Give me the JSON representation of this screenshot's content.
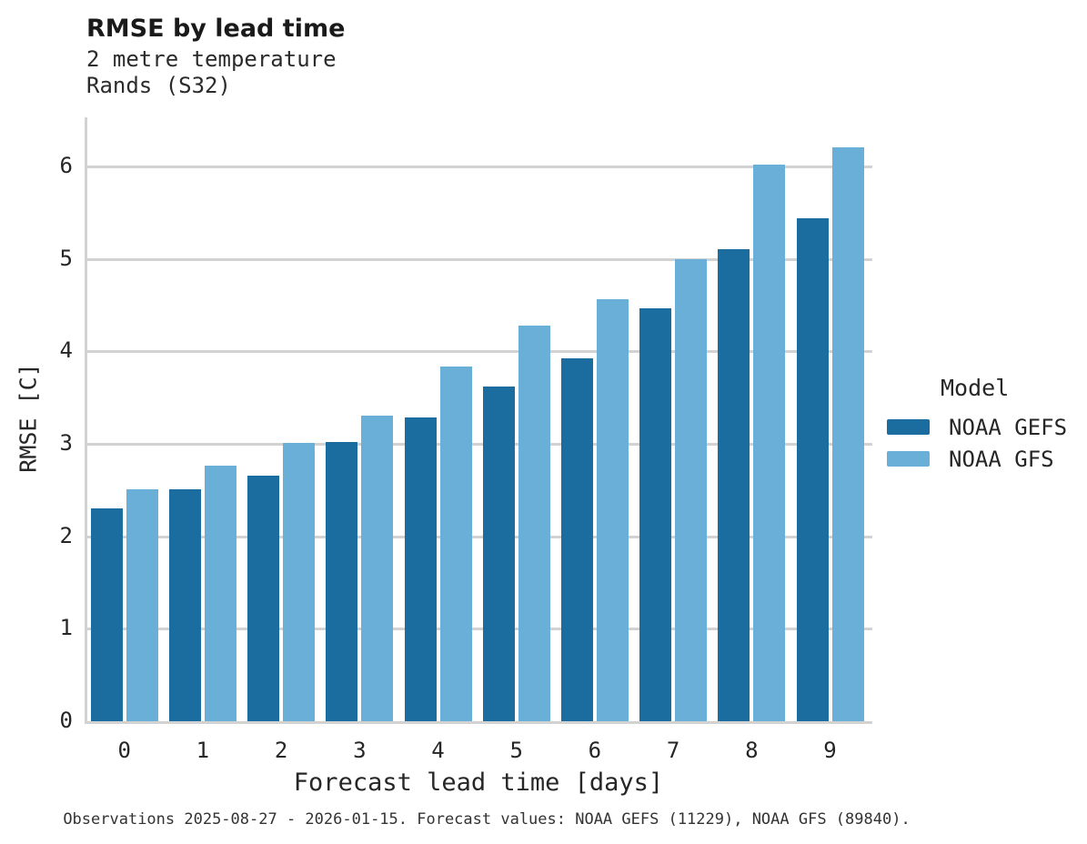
{
  "header": {
    "title": "RMSE by lead time",
    "subtitle_line1": "2 metre temperature",
    "subtitle_line2": "Rands (S32)"
  },
  "legend": {
    "title": "Model",
    "entries": [
      {
        "label": "NOAA GEFS",
        "color": "#1a6d9e"
      },
      {
        "label": "NOAA GFS",
        "color": "#69afd8"
      }
    ]
  },
  "footer": {
    "caption": "Observations 2025-08-27 - 2026-01-15. Forecast values: NOAA GEFS (11229), NOAA GFS (89840)."
  },
  "colors": {
    "series_dark": "#1a6d9e",
    "series_light": "#69afd8",
    "gridline": "#d2d2d2",
    "text": "#262626"
  },
  "chart_data": {
    "type": "bar",
    "title": "RMSE by lead time",
    "subtitle": [
      "2 metre temperature",
      "Rands (S32)"
    ],
    "xlabel": "Forecast lead time [days]",
    "ylabel": "RMSE [C]",
    "categories": [
      "0",
      "1",
      "2",
      "3",
      "4",
      "5",
      "6",
      "7",
      "8",
      "9"
    ],
    "series": [
      {
        "name": "NOAA GEFS",
        "color": "#1a6d9e",
        "values": [
          2.3,
          2.51,
          2.66,
          3.02,
          3.29,
          3.62,
          3.92,
          4.47,
          5.1,
          5.44
        ]
      },
      {
        "name": "NOAA GFS",
        "color": "#69afd8",
        "values": [
          2.51,
          2.76,
          3.01,
          3.3,
          3.84,
          4.28,
          4.56,
          5.0,
          6.02,
          6.21
        ]
      }
    ],
    "ylim": [
      0,
      6.5
    ],
    "yticks": [
      0,
      1,
      2,
      3,
      4,
      5,
      6
    ],
    "grid": true,
    "legend_title": "Model",
    "legend_position": "right"
  }
}
